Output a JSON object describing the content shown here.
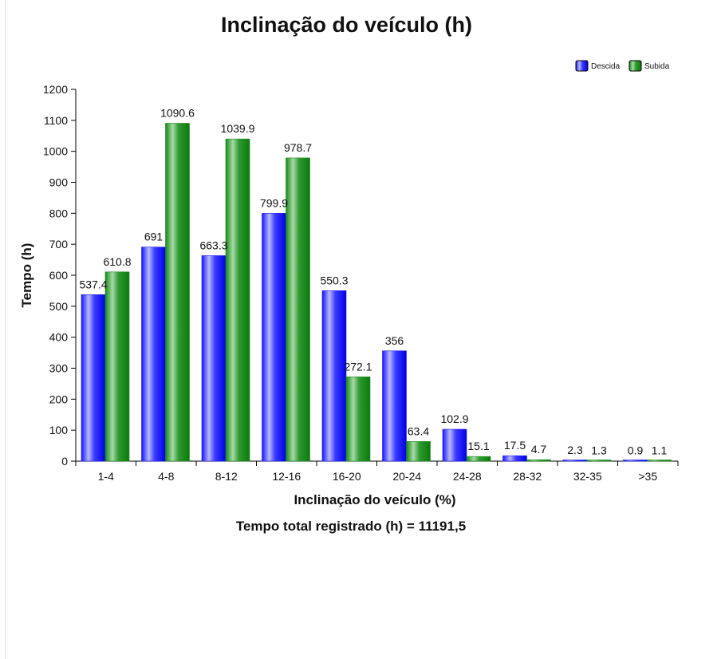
{
  "chart_data": {
    "type": "bar",
    "title": "Inclinação do veículo (h)",
    "xlabel": "Inclinação do veículo (%)",
    "ylabel": "Tempo (h)",
    "categories": [
      "1-4",
      "4-8",
      "8-12",
      "12-16",
      "16-20",
      "20-24",
      "24-28",
      "28-32",
      "32-35",
      ">35"
    ],
    "series": [
      {
        "name": "Descida",
        "color": "#1a1aff",
        "values": [
          537.4,
          691,
          663.3,
          799.9,
          550.3,
          356,
          102.9,
          17.5,
          2.3,
          0.9
        ]
      },
      {
        "name": "Subida",
        "color": "#1a8a1a",
        "values": [
          610.8,
          1090.6,
          1039.9,
          978.7,
          272.1,
          63.4,
          15.1,
          4.7,
          1.3,
          1.1
        ]
      }
    ],
    "ylim": [
      0,
      1200
    ],
    "yticks": [
      0,
      100,
      200,
      300,
      400,
      500,
      600,
      700,
      800,
      900,
      1000,
      1100,
      1200
    ],
    "grid": false,
    "legend_position": "top-right"
  },
  "footer": "Tempo total registrado (h) = 11191,5"
}
